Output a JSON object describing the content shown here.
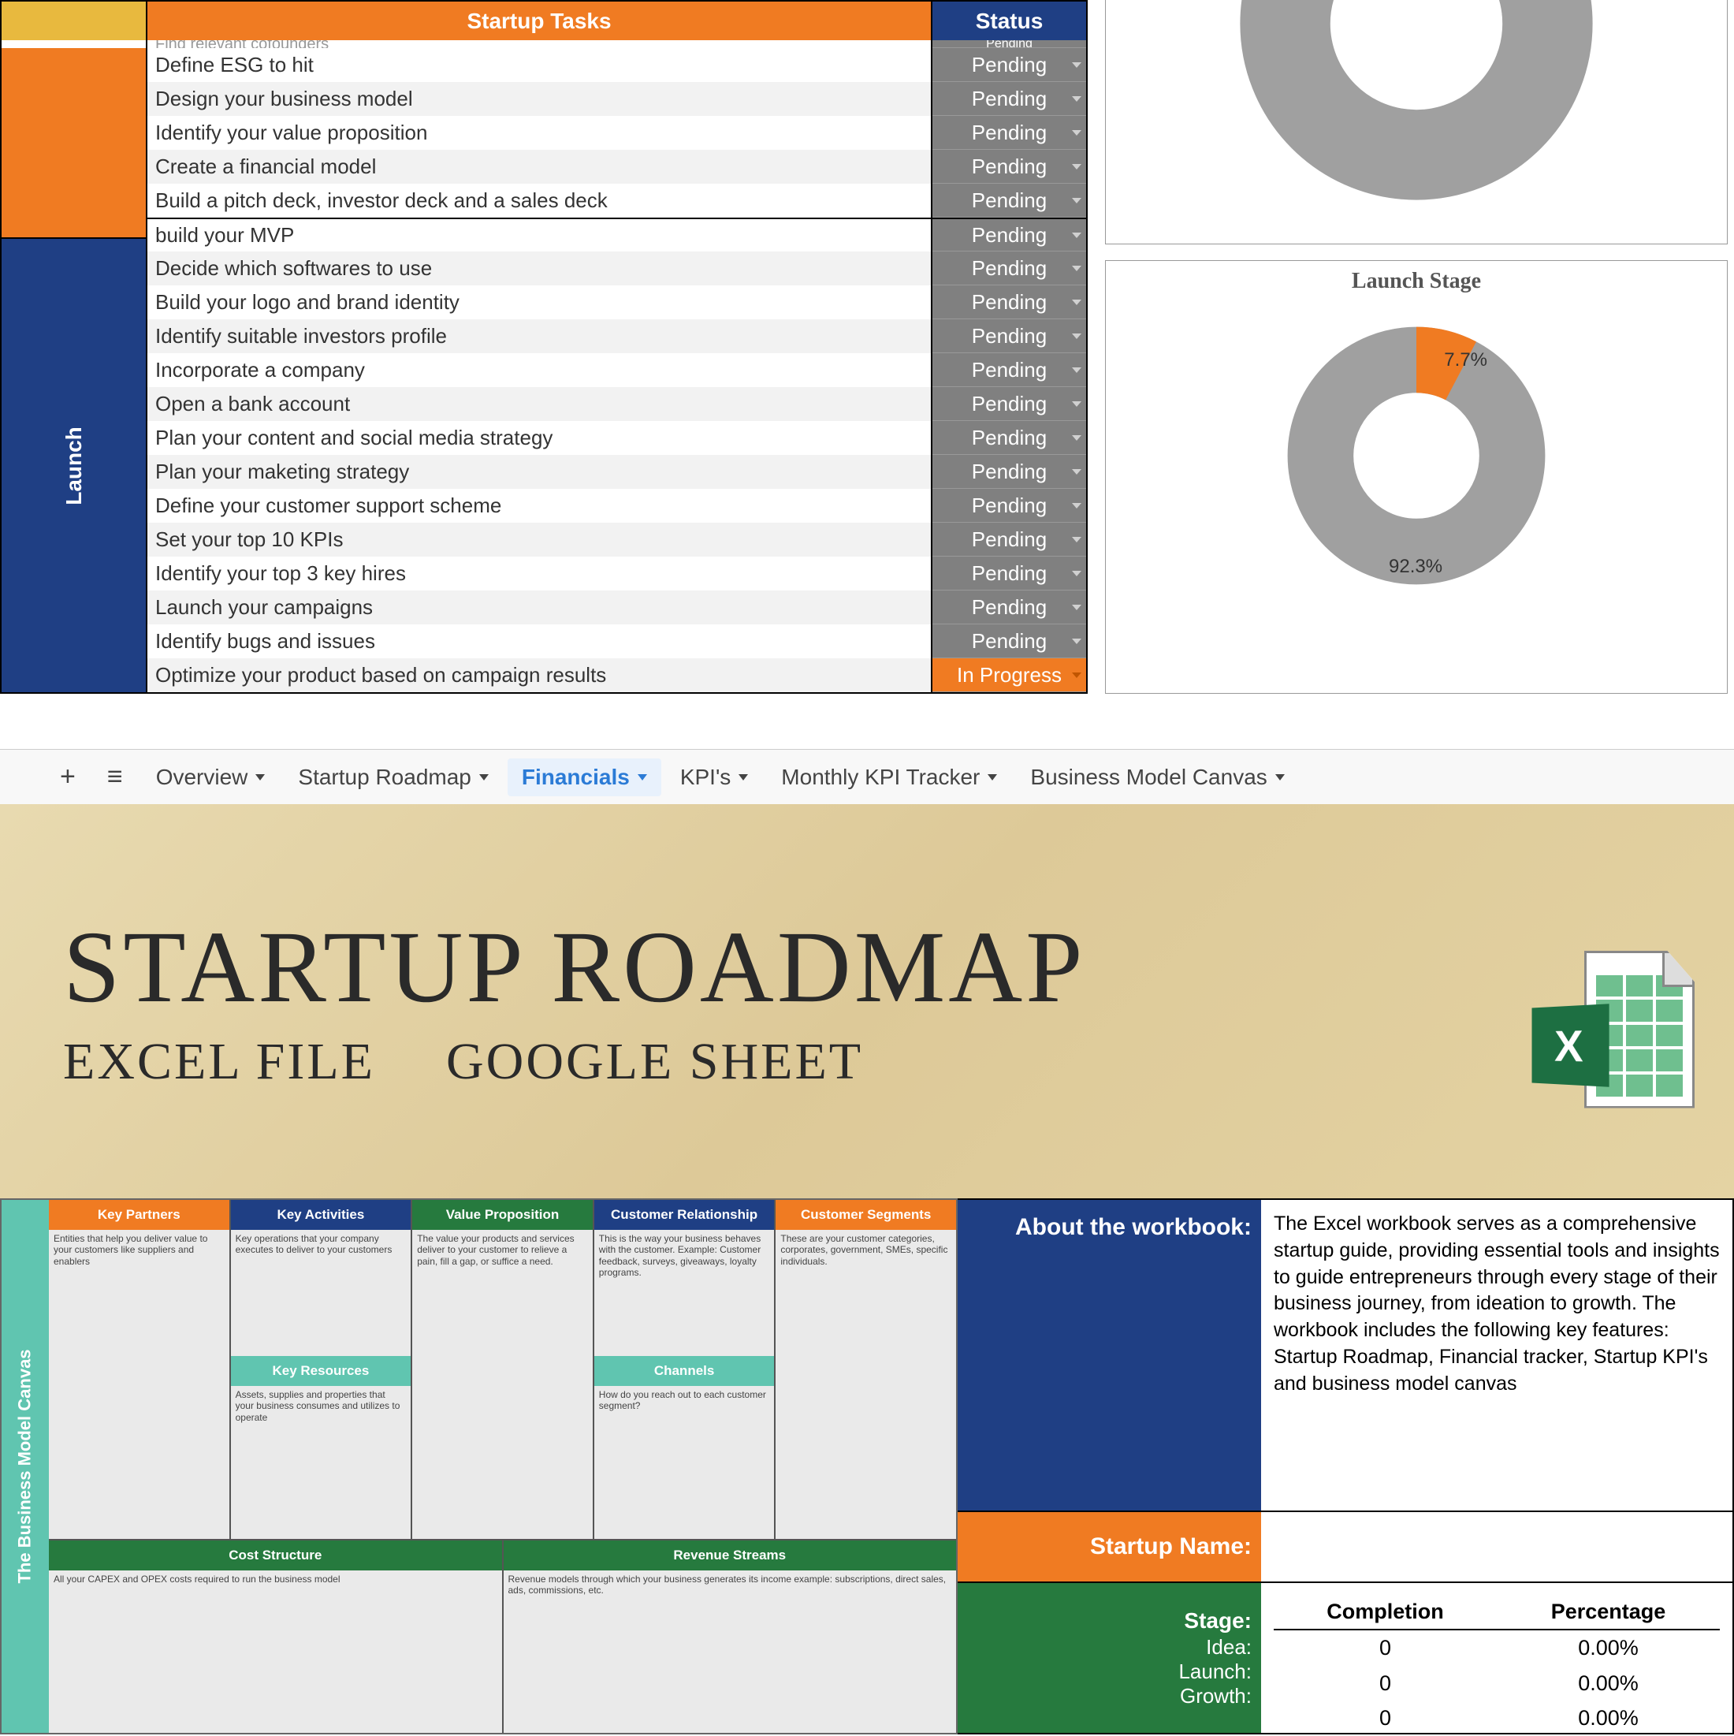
{
  "colors": {
    "orange": "#f07b22",
    "blue": "#1f3f84",
    "green": "#267a3e",
    "teal": "#60c5b0",
    "gold": "#e8b93e",
    "gray": "#808080"
  },
  "roadmap": {
    "header_tasks": "Startup Tasks",
    "header_status": "Status",
    "stage_launch_label": "Launch",
    "idea_tasks": [
      "Find relevant cofounders",
      "Define ESG to hit",
      "Design your business model",
      "Identify your value proposition",
      "Create a financial model",
      "Build a pitch deck, investor deck and a sales deck"
    ],
    "launch_tasks": [
      "build your MVP",
      "Decide which softwares to use",
      "Build your logo and brand identity",
      "Identify suitable investors profile",
      "Incorporate a company",
      "Open a bank account",
      "Plan your content and social media strategy",
      "Plan your maketing strategy",
      "Define your customer support scheme",
      "Set your top 10 KPIs",
      "Identify your top 3 key hires",
      "Launch your campaigns",
      "Identify bugs and issues",
      "Optimize your product based on campaign results"
    ],
    "status_pending": "Pending",
    "status_inprogress": "In Progress"
  },
  "chart": {
    "title": "Launch Stage",
    "pct_done": 7.7,
    "pct_remaining": 92.3,
    "done_color": "#f07b22",
    "rem_color": "#a0a0a0",
    "lbl_done": "7.7%",
    "lbl_rem": "92.3%"
  },
  "tabs": {
    "list": [
      "Overview",
      "Startup Roadmap",
      "Financials",
      "KPI's",
      "Monthly KPI Tracker",
      "Business Model Canvas"
    ],
    "active_index": 2
  },
  "banner": {
    "title": "STARTUP ROADMAP",
    "sub1": "EXCEL FILE",
    "sub2": "GOOGLE SHEET"
  },
  "bmc": {
    "side": "The Business Model Canvas",
    "cols": [
      {
        "h": "Key Partners",
        "c": "orange",
        "t": "Entities that help you deliver value to your customers like suppliers and enablers"
      },
      {
        "h": "Key Activities",
        "c": "blue",
        "t": "Key operations that your company executes to deliver to your customers",
        "sub_h": "Key Resources",
        "sub_c": "teal",
        "sub_t": "Assets, supplies and properties that your business consumes and utilizes to operate"
      },
      {
        "h": "Value Proposition",
        "c": "green",
        "t": "The value your products and services deliver to your customer to relieve a pain, fill a gap, or suffice a need."
      },
      {
        "h": "Customer Relationship",
        "c": "blue",
        "t": "This is the way your business behaves with the customer. Example: Customer feedback, surveys, giveaways, loyalty programs.",
        "sub_h": "Channels",
        "sub_c": "teal",
        "sub_t": "How do you reach out to each customer segment?"
      },
      {
        "h": "Customer Segments",
        "c": "orange",
        "t": "These are your customer categories, corporates, government, SMEs, specific individuals."
      }
    ],
    "brow": [
      {
        "h": "Cost Structure",
        "c": "green",
        "t": "All your CAPEX and OPEX costs required to run the business model"
      },
      {
        "h": "Revenue Streams",
        "c": "green",
        "t": "Revenue models through which your business generates its income example: subscriptions, direct sales, ads, commissions, etc."
      }
    ]
  },
  "about": {
    "lbl_about": "About the workbook:",
    "txt_about": "The Excel workbook serves as a comprehensive startup guide, providing essential tools and insights to guide entrepreneurs through every stage of their business journey, from ideation to growth. The workbook includes the following key features: Startup Roadmap, Financial tracker, Startup KPI's and business model canvas",
    "lbl_name": "Startup Name:",
    "lbl_stage": "Stage:",
    "col_comp": "Completion",
    "col_pct": "Percentage",
    "stages": [
      {
        "n": "Idea:",
        "c": "0",
        "p": "0.00%"
      },
      {
        "n": "Launch:",
        "c": "0",
        "p": "0.00%"
      },
      {
        "n": "Growth:",
        "c": "0",
        "p": "0.00%"
      }
    ]
  }
}
